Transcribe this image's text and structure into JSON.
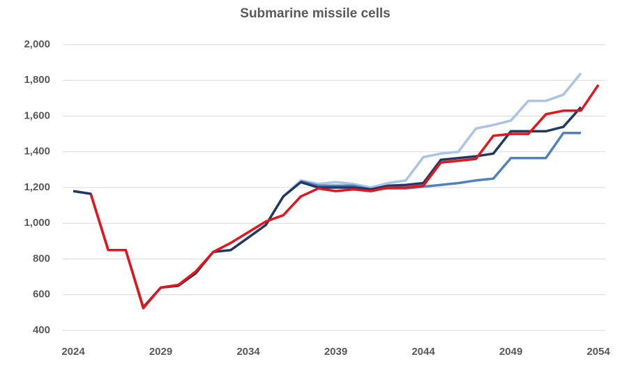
{
  "chart_data": {
    "type": "line",
    "title": "Submarine missile cells",
    "x": [
      2024,
      2025,
      2026,
      2027,
      2028,
      2029,
      2030,
      2031,
      2032,
      2033,
      2034,
      2035,
      2036,
      2037,
      2038,
      2039,
      2040,
      2041,
      2042,
      2043,
      2044,
      2045,
      2046,
      2047,
      2048,
      2049,
      2050,
      2051,
      2052,
      2053,
      2054
    ],
    "series": [
      {
        "color": "#a9c4e8",
        "values": [
          null,
          null,
          null,
          null,
          null,
          null,
          null,
          null,
          null,
          null,
          null,
          null,
          1150,
          1240,
          1220,
          1230,
          1220,
          1200,
          1225,
          1240,
          1370,
          1390,
          1400,
          1530,
          1550,
          1575,
          1685,
          1685,
          1720,
          1840,
          null
        ]
      },
      {
        "color": "#4f81bd",
        "values": [
          null,
          null,
          null,
          null,
          null,
          null,
          null,
          null,
          null,
          null,
          null,
          null,
          null,
          1235,
          1210,
          1210,
          1210,
          1190,
          1195,
          1195,
          1205,
          1215,
          1225,
          1240,
          1250,
          1365,
          1365,
          1365,
          1505,
          1505,
          null
        ]
      },
      {
        "color": "#1f3864",
        "values": [
          1180,
          1165,
          850,
          850,
          530,
          640,
          650,
          720,
          840,
          850,
          920,
          990,
          1150,
          1230,
          1200,
          1200,
          1200,
          1190,
          1210,
          1215,
          1225,
          1355,
          1365,
          1375,
          1390,
          1515,
          1515,
          1515,
          1540,
          1650,
          null
        ]
      },
      {
        "color": "#e8141c",
        "values": [
          null,
          1165,
          850,
          850,
          525,
          640,
          655,
          730,
          840,
          890,
          950,
          1010,
          1045,
          1150,
          1195,
          1180,
          1190,
          1180,
          1200,
          1200,
          1210,
          1340,
          1350,
          1360,
          1490,
          1500,
          1500,
          1610,
          1630,
          1630,
          1775
        ]
      }
    ],
    "xlim": [
      2024,
      2054
    ],
    "xticks": [
      2024,
      2029,
      2034,
      2039,
      2044,
      2049,
      2054
    ],
    "ylim": [
      400,
      2000
    ],
    "yticks": [
      400,
      600,
      800,
      {
        "value": 1000,
        "label": "1,000"
      },
      {
        "value": 1200,
        "label": "1,200"
      },
      {
        "value": 1400,
        "label": "1,400"
      },
      {
        "value": 1600,
        "label": "1,600"
      },
      {
        "value": 1800,
        "label": "1,800"
      },
      {
        "value": 2000,
        "label": "2,000"
      }
    ],
    "grid": true
  }
}
